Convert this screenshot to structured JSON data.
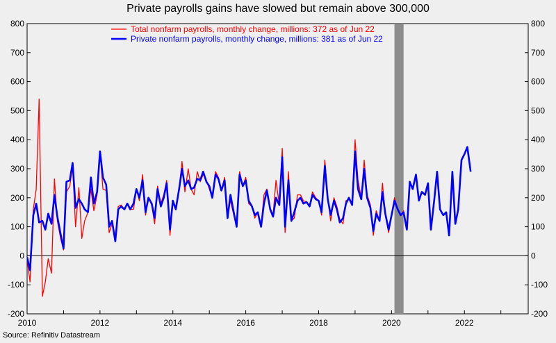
{
  "chart_data": {
    "type": "line",
    "title": "Private payrolls gains have slowed but remain above 300,000",
    "source": "Source: Refinitiv Datastream",
    "xlim": [
      2010,
      2023.75
    ],
    "ylim": [
      -200,
      800
    ],
    "y_ticks": [
      -200,
      -100,
      0,
      100,
      200,
      300,
      400,
      500,
      600,
      700,
      800
    ],
    "x_ticks": [
      2010,
      2012,
      2014,
      2016,
      2018,
      2020,
      2022
    ],
    "x_tick_labels": [
      "2010",
      "2012",
      "2014",
      "2016",
      "2018",
      "2020",
      "2022"
    ],
    "recession_band": [
      2020.08,
      2020.33
    ],
    "legend_position": "top-center",
    "legend": [
      "Total nonfarm payrolls, monthly change, millions: 372 as of Jun 22",
      "Private nonfarm payrolls, monthly change, millions: 381 as of Jun 22"
    ],
    "colors": {
      "total": "#ff0000",
      "private": "#0000ff",
      "recession": "#8c8c8c",
      "background": "#efefef"
    },
    "series": [
      {
        "name": "Total nonfarm payrolls, monthly change, millions: 372 as of Jun 22",
        "color": "#ff0000",
        "points": [
          [
            2010.0,
            -10
          ],
          [
            2010.08,
            -90
          ],
          [
            2010.17,
            160
          ],
          [
            2010.25,
            230
          ],
          [
            2010.33,
            540
          ],
          [
            2010.42,
            -140
          ],
          [
            2010.5,
            -90
          ],
          [
            2010.58,
            -10
          ],
          [
            2010.67,
            -60
          ],
          [
            2010.75,
            265
          ],
          [
            2010.83,
            120
          ],
          [
            2010.92,
            60
          ],
          [
            2011.0,
            20
          ],
          [
            2011.08,
            220
          ],
          [
            2011.17,
            240
          ],
          [
            2011.25,
            310
          ],
          [
            2011.33,
            100
          ],
          [
            2011.42,
            235
          ],
          [
            2011.5,
            60
          ],
          [
            2011.58,
            120
          ],
          [
            2011.67,
            150
          ],
          [
            2011.75,
            230
          ],
          [
            2011.83,
            155
          ],
          [
            2011.92,
            210
          ],
          [
            2012.0,
            360
          ],
          [
            2012.08,
            230
          ],
          [
            2012.17,
            225
          ],
          [
            2012.25,
            80
          ],
          [
            2012.33,
            110
          ],
          [
            2012.42,
            55
          ],
          [
            2012.5,
            170
          ],
          [
            2012.58,
            175
          ],
          [
            2012.67,
            160
          ],
          [
            2012.75,
            180
          ],
          [
            2012.83,
            160
          ],
          [
            2012.92,
            160
          ],
          [
            2013.0,
            230
          ],
          [
            2013.08,
            190
          ],
          [
            2013.17,
            280
          ],
          [
            2013.25,
            140
          ],
          [
            2013.33,
            200
          ],
          [
            2013.42,
            175
          ],
          [
            2013.5,
            110
          ],
          [
            2013.58,
            240
          ],
          [
            2013.67,
            180
          ],
          [
            2013.75,
            210
          ],
          [
            2013.83,
            260
          ],
          [
            2013.92,
            70
          ],
          [
            2014.0,
            190
          ],
          [
            2014.08,
            160
          ],
          [
            2014.17,
            230
          ],
          [
            2014.25,
            325
          ],
          [
            2014.33,
            220
          ],
          [
            2014.42,
            300
          ],
          [
            2014.5,
            230
          ],
          [
            2014.58,
            210
          ],
          [
            2014.67,
            290
          ],
          [
            2014.75,
            255
          ],
          [
            2014.83,
            280
          ],
          [
            2014.92,
            260
          ],
          [
            2015.0,
            230
          ],
          [
            2015.08,
            200
          ],
          [
            2015.17,
            290
          ],
          [
            2015.25,
            270
          ],
          [
            2015.33,
            225
          ],
          [
            2015.42,
            270
          ],
          [
            2015.5,
            150
          ],
          [
            2015.58,
            190
          ],
          [
            2015.67,
            140
          ],
          [
            2015.75,
            100
          ],
          [
            2015.83,
            290
          ],
          [
            2015.92,
            240
          ],
          [
            2016.0,
            270
          ],
          [
            2016.08,
            180
          ],
          [
            2016.17,
            170
          ],
          [
            2016.25,
            130
          ],
          [
            2016.33,
            150
          ],
          [
            2016.42,
            100
          ],
          [
            2016.5,
            210
          ],
          [
            2016.58,
            230
          ],
          [
            2016.67,
            165
          ],
          [
            2016.75,
            140
          ],
          [
            2016.83,
            260
          ],
          [
            2016.92,
            175
          ],
          [
            2017.0,
            370
          ],
          [
            2017.08,
            80
          ],
          [
            2017.17,
            290
          ],
          [
            2017.25,
            120
          ],
          [
            2017.33,
            130
          ],
          [
            2017.42,
            210
          ],
          [
            2017.5,
            210
          ],
          [
            2017.58,
            190
          ],
          [
            2017.67,
            185
          ],
          [
            2017.75,
            170
          ],
          [
            2017.83,
            220
          ],
          [
            2017.92,
            200
          ],
          [
            2018.0,
            190
          ],
          [
            2018.08,
            140
          ],
          [
            2018.17,
            330
          ],
          [
            2018.25,
            200
          ],
          [
            2018.33,
            120
          ],
          [
            2018.42,
            200
          ],
          [
            2018.5,
            170
          ],
          [
            2018.58,
            125
          ],
          [
            2018.67,
            110
          ],
          [
            2018.75,
            190
          ],
          [
            2018.83,
            195
          ],
          [
            2018.92,
            185
          ],
          [
            2019.0,
            400
          ],
          [
            2019.08,
            260
          ],
          [
            2019.17,
            200
          ],
          [
            2019.25,
            330
          ],
          [
            2019.33,
            210
          ],
          [
            2019.42,
            175
          ],
          [
            2019.5,
            70
          ],
          [
            2019.58,
            155
          ],
          [
            2019.67,
            120
          ],
          [
            2019.75,
            250
          ],
          [
            2019.83,
            140
          ],
          [
            2019.92,
            80
          ],
          [
            2020.0,
            140
          ],
          [
            2020.08,
            200
          ],
          [
            2020.17,
            160
          ],
          [
            2020.25,
            140
          ],
          [
            2020.33,
            155
          ],
          [
            2020.42,
            90
          ],
          [
            2020.5,
            255
          ],
          [
            2020.58,
            230
          ],
          [
            2020.67,
            280
          ],
          [
            2020.75,
            190
          ],
          [
            2020.83,
            220
          ],
          [
            2020.92,
            210
          ],
          [
            2021.0,
            250
          ],
          [
            2021.08,
            90
          ],
          [
            2021.17,
            190
          ],
          [
            2021.25,
            290
          ],
          [
            2021.33,
            160
          ],
          [
            2021.42,
            140
          ],
          [
            2021.5,
            150
          ],
          [
            2021.58,
            70
          ],
          [
            2021.67,
            290
          ],
          [
            2021.75,
            110
          ],
          [
            2021.83,
            160
          ],
          [
            2021.92,
            330
          ],
          [
            2022.0,
            350
          ],
          [
            2022.08,
            375
          ],
          [
            2022.17,
            290
          ]
        ]
      },
      {
        "name": "Private nonfarm payrolls, monthly change, millions: 381 as of Jun 22",
        "color": "#0000ff",
        "points": [
          [
            2010.0,
            -5
          ],
          [
            2010.08,
            -50
          ],
          [
            2010.17,
            140
          ],
          [
            2010.25,
            180
          ],
          [
            2010.33,
            115
          ],
          [
            2010.42,
            120
          ],
          [
            2010.5,
            90
          ],
          [
            2010.58,
            145
          ],
          [
            2010.67,
            110
          ],
          [
            2010.75,
            210
          ],
          [
            2010.83,
            135
          ],
          [
            2010.92,
            75
          ],
          [
            2011.0,
            25
          ],
          [
            2011.08,
            255
          ],
          [
            2011.17,
            260
          ],
          [
            2011.25,
            320
          ],
          [
            2011.33,
            165
          ],
          [
            2011.42,
            195
          ],
          [
            2011.5,
            180
          ],
          [
            2011.58,
            160
          ],
          [
            2011.67,
            150
          ],
          [
            2011.75,
            270
          ],
          [
            2011.83,
            180
          ],
          [
            2011.92,
            220
          ],
          [
            2012.0,
            360
          ],
          [
            2012.08,
            270
          ],
          [
            2012.17,
            245
          ],
          [
            2012.25,
            100
          ],
          [
            2012.33,
            120
          ],
          [
            2012.42,
            50
          ],
          [
            2012.5,
            160
          ],
          [
            2012.58,
            170
          ],
          [
            2012.67,
            160
          ],
          [
            2012.75,
            180
          ],
          [
            2012.83,
            160
          ],
          [
            2012.92,
            180
          ],
          [
            2013.0,
            230
          ],
          [
            2013.08,
            200
          ],
          [
            2013.17,
            260
          ],
          [
            2013.25,
            150
          ],
          [
            2013.33,
            200
          ],
          [
            2013.42,
            180
          ],
          [
            2013.5,
            130
          ],
          [
            2013.58,
            230
          ],
          [
            2013.67,
            170
          ],
          [
            2013.75,
            200
          ],
          [
            2013.83,
            250
          ],
          [
            2013.92,
            90
          ],
          [
            2014.0,
            190
          ],
          [
            2014.08,
            160
          ],
          [
            2014.17,
            230
          ],
          [
            2014.25,
            300
          ],
          [
            2014.33,
            240
          ],
          [
            2014.42,
            260
          ],
          [
            2014.5,
            230
          ],
          [
            2014.58,
            235
          ],
          [
            2014.67,
            265
          ],
          [
            2014.75,
            260
          ],
          [
            2014.83,
            290
          ],
          [
            2014.92,
            255
          ],
          [
            2015.0,
            240
          ],
          [
            2015.08,
            200
          ],
          [
            2015.17,
            280
          ],
          [
            2015.25,
            265
          ],
          [
            2015.33,
            225
          ],
          [
            2015.42,
            260
          ],
          [
            2015.5,
            130
          ],
          [
            2015.58,
            210
          ],
          [
            2015.67,
            150
          ],
          [
            2015.75,
            100
          ],
          [
            2015.83,
            280
          ],
          [
            2015.92,
            240
          ],
          [
            2016.0,
            260
          ],
          [
            2016.08,
            190
          ],
          [
            2016.17,
            170
          ],
          [
            2016.25,
            140
          ],
          [
            2016.33,
            150
          ],
          [
            2016.42,
            100
          ],
          [
            2016.5,
            180
          ],
          [
            2016.58,
            225
          ],
          [
            2016.67,
            160
          ],
          [
            2016.75,
            135
          ],
          [
            2016.83,
            200
          ],
          [
            2016.92,
            175
          ],
          [
            2017.0,
            340
          ],
          [
            2017.08,
            100
          ],
          [
            2017.17,
            260
          ],
          [
            2017.25,
            120
          ],
          [
            2017.33,
            150
          ],
          [
            2017.42,
            190
          ],
          [
            2017.5,
            200
          ],
          [
            2017.58,
            180
          ],
          [
            2017.67,
            185
          ],
          [
            2017.75,
            170
          ],
          [
            2017.83,
            210
          ],
          [
            2017.92,
            195
          ],
          [
            2018.0,
            190
          ],
          [
            2018.08,
            150
          ],
          [
            2018.17,
            310
          ],
          [
            2018.25,
            195
          ],
          [
            2018.33,
            140
          ],
          [
            2018.42,
            190
          ],
          [
            2018.5,
            160
          ],
          [
            2018.58,
            115
          ],
          [
            2018.67,
            130
          ],
          [
            2018.75,
            180
          ],
          [
            2018.83,
            200
          ],
          [
            2018.92,
            175
          ],
          [
            2019.0,
            360
          ],
          [
            2019.08,
            230
          ],
          [
            2019.17,
            195
          ],
          [
            2019.25,
            300
          ],
          [
            2019.33,
            200
          ],
          [
            2019.42,
            165
          ],
          [
            2019.5,
            85
          ],
          [
            2019.58,
            145
          ],
          [
            2019.67,
            120
          ],
          [
            2019.75,
            220
          ],
          [
            2019.83,
            145
          ],
          [
            2019.92,
            90
          ],
          [
            2020.0,
            140
          ],
          [
            2020.08,
            190
          ],
          [
            2020.17,
            160
          ],
          [
            2020.25,
            140
          ],
          [
            2020.33,
            150
          ],
          [
            2020.42,
            90
          ],
          [
            2020.5,
            255
          ],
          [
            2020.58,
            230
          ],
          [
            2020.67,
            280
          ],
          [
            2020.75,
            190
          ],
          [
            2020.83,
            220
          ],
          [
            2020.92,
            210
          ],
          [
            2021.0,
            250
          ],
          [
            2021.08,
            90
          ],
          [
            2021.17,
            190
          ],
          [
            2021.25,
            290
          ],
          [
            2021.33,
            160
          ],
          [
            2021.42,
            140
          ],
          [
            2021.5,
            150
          ],
          [
            2021.58,
            70
          ],
          [
            2021.67,
            290
          ],
          [
            2021.75,
            110
          ],
          [
            2021.83,
            160
          ],
          [
            2021.92,
            330
          ],
          [
            2022.0,
            350
          ],
          [
            2022.08,
            375
          ],
          [
            2022.17,
            290
          ]
        ]
      }
    ]
  }
}
